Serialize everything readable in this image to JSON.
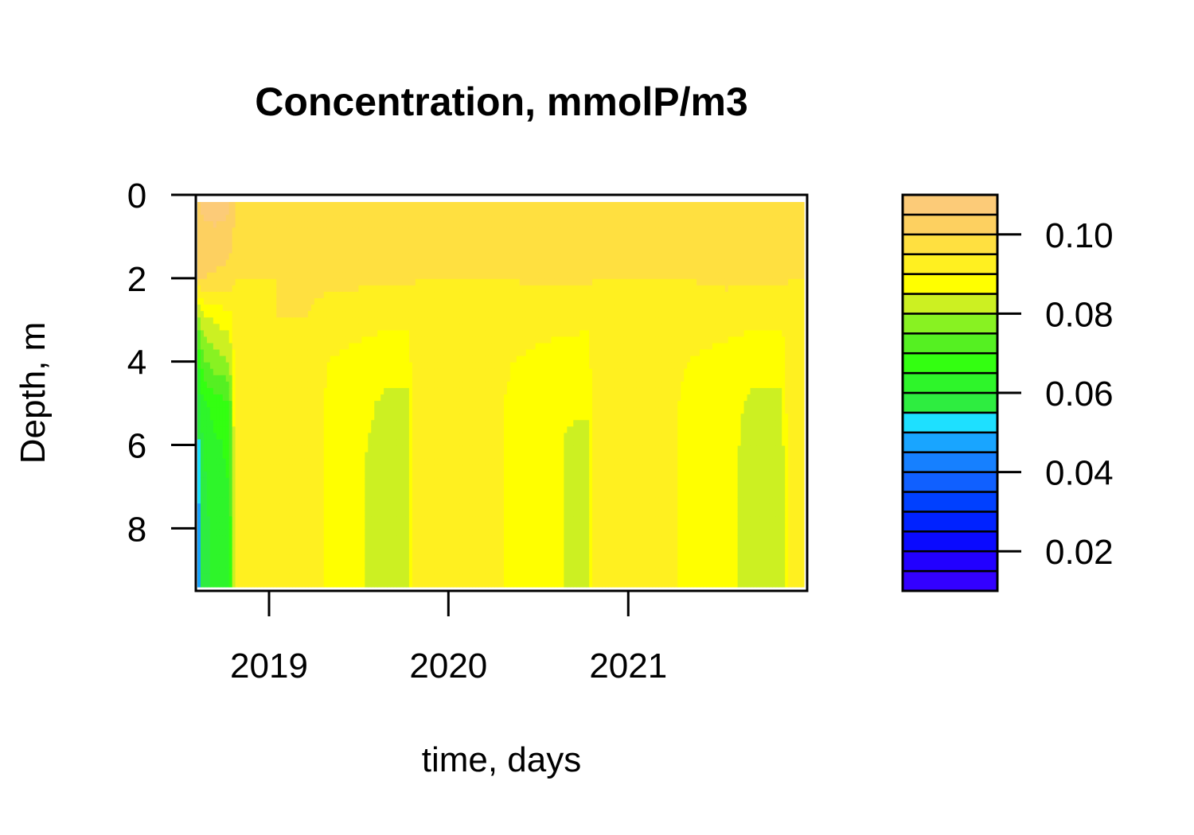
{
  "chart_data": {
    "type": "heatmap",
    "title": "Concentration, mmolP/m3",
    "xlabel": "time, days",
    "ylabel": "Depth, m",
    "x_tick_labels": [
      "2019",
      "2020",
      "2021"
    ],
    "x_ticks_date": [
      "2019-01-01",
      "2020-01-01",
      "2021-01-01"
    ],
    "x_range_date": [
      "2018-08-05",
      "2021-12-31"
    ],
    "y_tick_labels": [
      "0",
      "2",
      "4",
      "6",
      "8"
    ],
    "y_ticks": [
      0,
      2,
      4,
      6,
      8
    ],
    "ylim": [
      0,
      9.5
    ],
    "y_reversed": true,
    "colorbar": {
      "tick_labels": [
        "0.10",
        "0.08",
        "0.06",
        "0.04",
        "0.02"
      ],
      "ticks": [
        0.1,
        0.08,
        0.06,
        0.04,
        0.02
      ],
      "range": [
        0.01,
        0.11
      ],
      "levels": [
        0.01,
        0.015,
        0.02,
        0.025,
        0.03,
        0.035,
        0.04,
        0.045,
        0.05,
        0.055,
        0.06,
        0.065,
        0.07,
        0.075,
        0.08,
        0.085,
        0.09,
        0.095,
        0.1,
        0.105,
        0.11
      ],
      "colors": [
        "#3300FF",
        "#2200FF",
        "#0A0AFF",
        "#0022FF",
        "#0040FF",
        "#1060FF",
        "#1680FF",
        "#19A5FF",
        "#1EE0FF",
        "#2EED40",
        "#2EF52A",
        "#33FF11",
        "#55F022",
        "#88F222",
        "#CCF022",
        "#FFFF00",
        "#FFF020",
        "#FFE040",
        "#FDD060",
        "#FCCB78",
        "#FFDBAA"
      ]
    },
    "profiles": [
      {
        "date": "2018-08-05",
        "values": [
          0.104,
          0.103,
          0.1,
          0.075,
          0.06,
          0.055,
          0.05,
          0.045,
          0.042,
          0.04
        ]
      },
      {
        "date": "2018-08-20",
        "values": [
          0.106,
          0.104,
          0.1,
          0.083,
          0.074,
          0.064,
          0.06,
          0.059,
          0.058,
          0.058
        ]
      },
      {
        "date": "2018-09-15",
        "values": [
          0.107,
          0.104,
          0.099,
          0.086,
          0.078,
          0.068,
          0.064,
          0.063,
          0.062,
          0.062
        ]
      },
      {
        "date": "2018-10-12",
        "values": [
          0.106,
          0.103,
          0.098,
          0.087,
          0.08,
          0.069,
          0.066,
          0.065,
          0.064,
          0.064
        ]
      },
      {
        "date": "2018-10-25",
        "values": [
          0.1,
          0.098,
          0.095,
          0.094,
          0.093,
          0.093,
          0.092,
          0.092,
          0.091,
          0.091
        ]
      },
      {
        "date": "2019-01-15",
        "values": [
          0.095,
          0.095,
          0.095,
          0.095,
          0.095,
          0.095,
          0.095,
          0.095,
          0.095,
          0.095
        ]
      },
      {
        "date": "2019-03-20",
        "values": [
          0.096,
          0.096,
          0.096,
          0.095,
          0.094,
          0.094,
          0.094,
          0.094,
          0.094,
          0.094
        ]
      },
      {
        "date": "2019-05-01",
        "values": [
          0.099,
          0.098,
          0.096,
          0.093,
          0.09,
          0.089,
          0.089,
          0.089,
          0.089,
          0.089
        ]
      },
      {
        "date": "2019-07-01",
        "values": [
          0.1,
          0.099,
          0.096,
          0.092,
          0.088,
          0.087,
          0.086,
          0.086,
          0.086,
          0.086
        ]
      },
      {
        "date": "2019-08-25",
        "values": [
          0.1,
          0.099,
          0.096,
          0.091,
          0.087,
          0.084,
          0.083,
          0.082,
          0.082,
          0.082
        ]
      },
      {
        "date": "2019-10-10",
        "values": [
          0.099,
          0.098,
          0.096,
          0.091,
          0.087,
          0.084,
          0.083,
          0.082,
          0.082,
          0.082
        ]
      },
      {
        "date": "2019-10-25",
        "values": [
          0.096,
          0.096,
          0.095,
          0.094,
          0.094,
          0.094,
          0.094,
          0.094,
          0.094,
          0.094
        ]
      },
      {
        "date": "2020-02-01",
        "values": [
          0.095,
          0.095,
          0.095,
          0.095,
          0.095,
          0.095,
          0.095,
          0.095,
          0.095,
          0.095
        ]
      },
      {
        "date": "2020-05-10",
        "values": [
          0.098,
          0.097,
          0.095,
          0.093,
          0.09,
          0.089,
          0.089,
          0.089,
          0.089,
          0.089
        ]
      },
      {
        "date": "2020-07-20",
        "values": [
          0.1,
          0.099,
          0.096,
          0.092,
          0.088,
          0.087,
          0.087,
          0.087,
          0.087,
          0.087
        ]
      },
      {
        "date": "2020-09-20",
        "values": [
          0.1,
          0.099,
          0.096,
          0.091,
          0.088,
          0.086,
          0.083,
          0.083,
          0.083,
          0.083
        ]
      },
      {
        "date": "2020-10-10",
        "values": [
          0.099,
          0.098,
          0.096,
          0.091,
          0.087,
          0.086,
          0.083,
          0.083,
          0.083,
          0.083
        ]
      },
      {
        "date": "2020-10-25",
        "values": [
          0.096,
          0.096,
          0.095,
          0.094,
          0.094,
          0.094,
          0.094,
          0.094,
          0.094,
          0.094
        ]
      },
      {
        "date": "2021-01-15",
        "values": [
          0.095,
          0.095,
          0.095,
          0.095,
          0.095,
          0.095,
          0.095,
          0.095,
          0.095,
          0.095
        ]
      },
      {
        "date": "2021-05-01",
        "values": [
          0.098,
          0.097,
          0.095,
          0.093,
          0.09,
          0.089,
          0.089,
          0.089,
          0.089,
          0.089
        ]
      },
      {
        "date": "2021-07-20",
        "values": [
          0.1,
          0.099,
          0.096,
          0.092,
          0.088,
          0.087,
          0.087,
          0.087,
          0.087,
          0.087
        ]
      },
      {
        "date": "2021-09-10",
        "values": [
          0.1,
          0.099,
          0.096,
          0.091,
          0.087,
          0.084,
          0.083,
          0.082,
          0.082,
          0.082
        ]
      },
      {
        "date": "2021-11-10",
        "values": [
          0.099,
          0.098,
          0.096,
          0.091,
          0.087,
          0.084,
          0.083,
          0.082,
          0.082,
          0.082
        ]
      },
      {
        "date": "2021-11-25",
        "values": [
          0.096,
          0.096,
          0.095,
          0.094,
          0.094,
          0.094,
          0.094,
          0.094,
          0.094,
          0.094
        ]
      },
      {
        "date": "2021-12-31",
        "values": [
          0.095,
          0.095,
          0.095,
          0.095,
          0.095,
          0.095,
          0.095,
          0.095,
          0.095,
          0.095
        ]
      }
    ],
    "profile_depths": [
      0.2,
      1,
      2,
      3,
      4,
      5,
      6,
      7,
      8,
      9.3
    ]
  }
}
